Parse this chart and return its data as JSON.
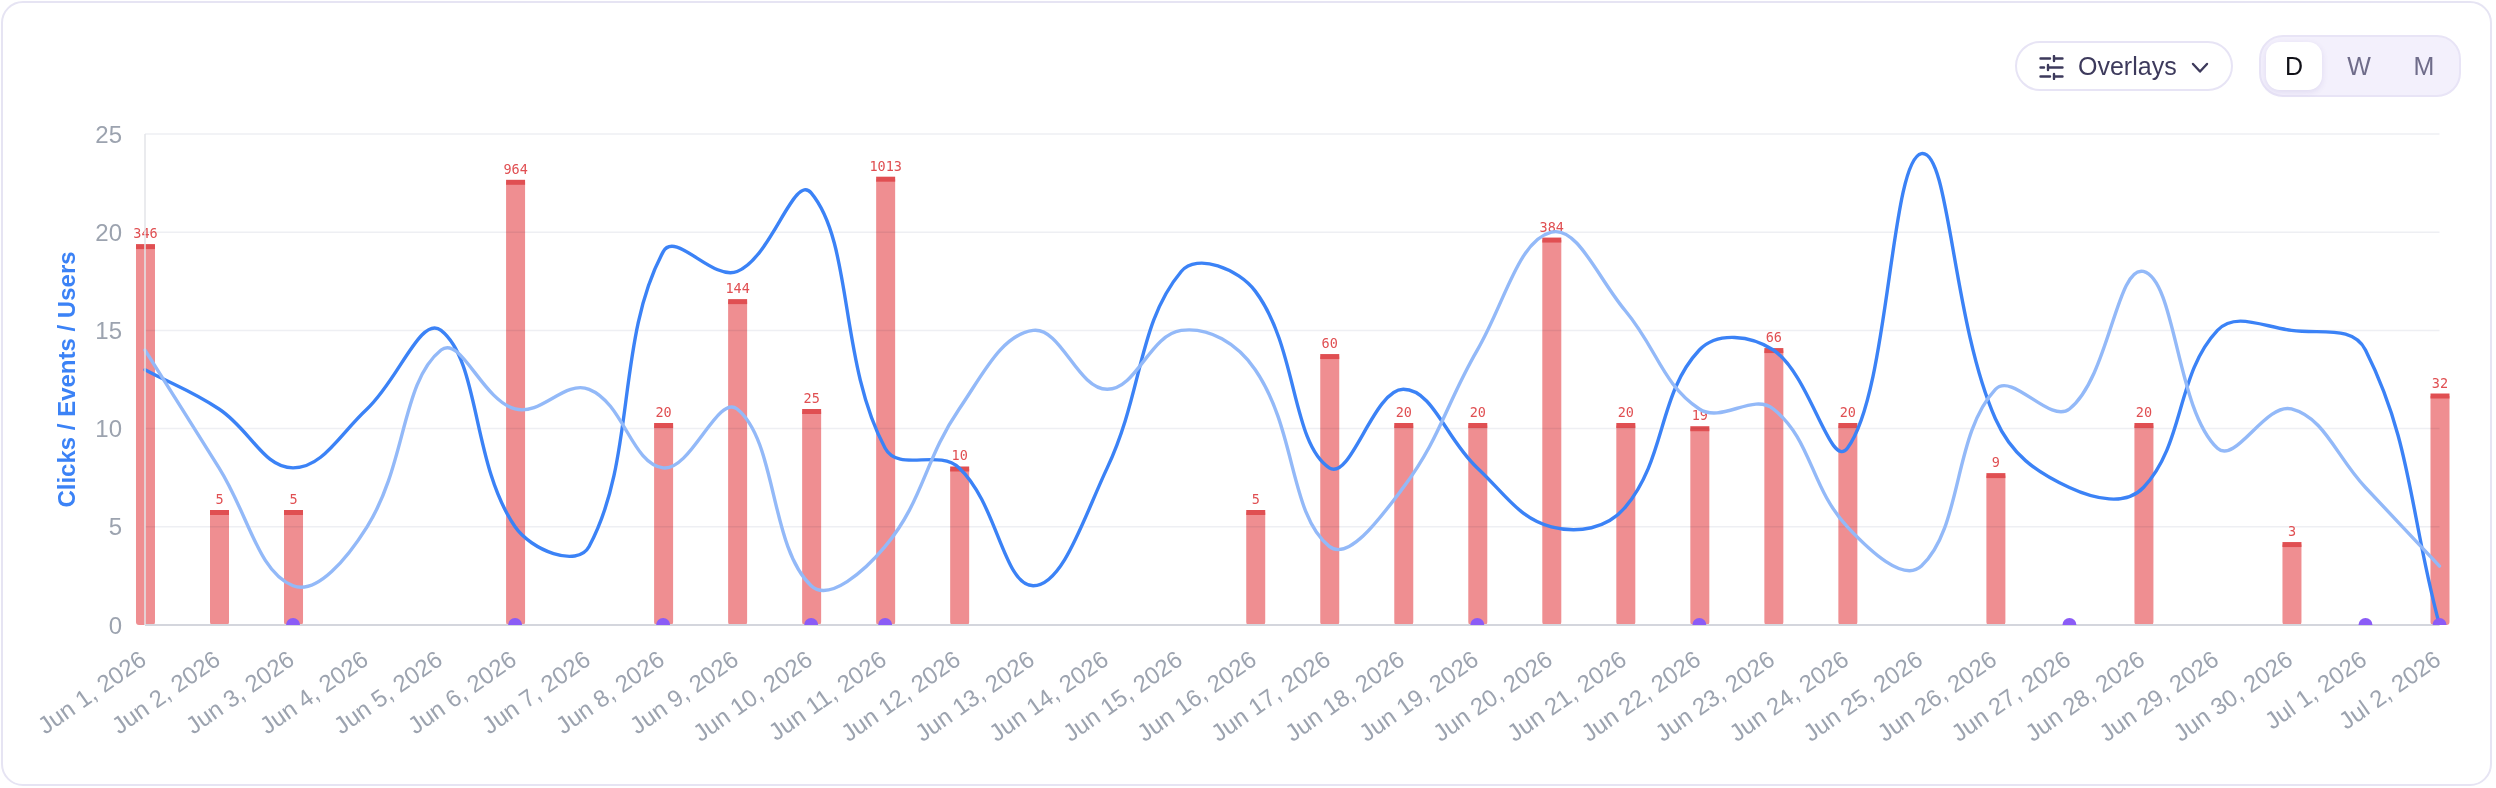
{
  "chart_data": {
    "type": "bar",
    "ylabel": "Clicks / Events / Users",
    "categories": [
      "Jun 1, 2026",
      "Jun 2, 2026",
      "Jun 3, 2026",
      "Jun 4, 2026",
      "Jun 5, 2026",
      "Jun 6, 2026",
      "Jun 7, 2026",
      "Jun 8, 2026",
      "Jun 9, 2026",
      "Jun 10, 2026",
      "Jun 11, 2026",
      "Jun 12, 2026",
      "Jun 13, 2026",
      "Jun 14, 2026",
      "Jun 15, 2026",
      "Jun 16, 2026",
      "Jun 17, 2026",
      "Jun 18, 2026",
      "Jun 19, 2026",
      "Jun 20, 2026",
      "Jun 21, 2026",
      "Jun 22, 2026",
      "Jun 23, 2026",
      "Jun 24, 2026",
      "Jun 25, 2026",
      "Jun 26, 2026",
      "Jun 27, 2026",
      "Jun 28, 2026",
      "Jun 29, 2026",
      "Jun 30, 2026",
      "Jul 1, 2026",
      "Jul 2, 2026"
    ],
    "series": [
      {
        "type": "line",
        "color": "#3b82f6",
        "values": [
          13,
          11,
          8,
          11,
          15,
          5,
          4,
          19,
          18,
          22,
          9,
          8,
          2,
          8,
          18,
          17,
          8,
          12,
          8,
          5,
          6,
          14,
          14,
          9,
          24,
          10.5,
          7,
          7,
          15,
          15,
          14,
          0
        ]
      },
      {
        "type": "line",
        "color": "#93b9f8",
        "values": [
          14,
          8,
          2,
          5,
          14,
          11,
          12,
          8,
          11,
          2,
          4,
          11,
          15,
          12,
          15,
          13,
          4,
          7,
          14,
          20,
          16,
          11,
          11,
          5,
          3,
          12,
          11,
          18,
          9,
          11,
          7,
          3
        ]
      },
      {
        "axis": "y2",
        "color": "#ef8e91",
        "values": [
          346,
          5,
          5,
          null,
          null,
          964,
          null,
          20,
          144,
          25,
          1013,
          10,
          null,
          null,
          null,
          5,
          60,
          20,
          20,
          384,
          20,
          19,
          66,
          20,
          null,
          9,
          null,
          20,
          null,
          3,
          null,
          32
        ],
        "value_labels": [
          "346",
          "5",
          "5",
          null,
          null,
          "964",
          null,
          "20",
          "144",
          "25",
          "1013",
          "10",
          null,
          null,
          null,
          "5",
          "60",
          "20",
          "20",
          "384",
          "20",
          "19",
          "66",
          "20",
          null,
          "9",
          null,
          "20",
          null,
          "3",
          null,
          "32"
        ]
      },
      {
        "type": "scatter",
        "color": "#8b5cf6",
        "marker": "circle",
        "values": [
          null,
          null,
          0,
          null,
          null,
          0,
          null,
          0,
          null,
          0,
          0,
          null,
          null,
          null,
          null,
          null,
          null,
          null,
          0,
          null,
          null,
          0,
          null,
          null,
          null,
          null,
          0,
          null,
          null,
          null,
          0,
          0
        ]
      }
    ],
    "ylim": [
      0,
      25
    ],
    "yticks": [
      0,
      5,
      10,
      15,
      20,
      25
    ],
    "y2lim": [
      0.8,
      2000
    ],
    "log": "y2",
    "grid": "y",
    "tick_labels": "xy",
    "annotations": [
      "Overlays",
      "D",
      "W",
      "M"
    ]
  }
}
